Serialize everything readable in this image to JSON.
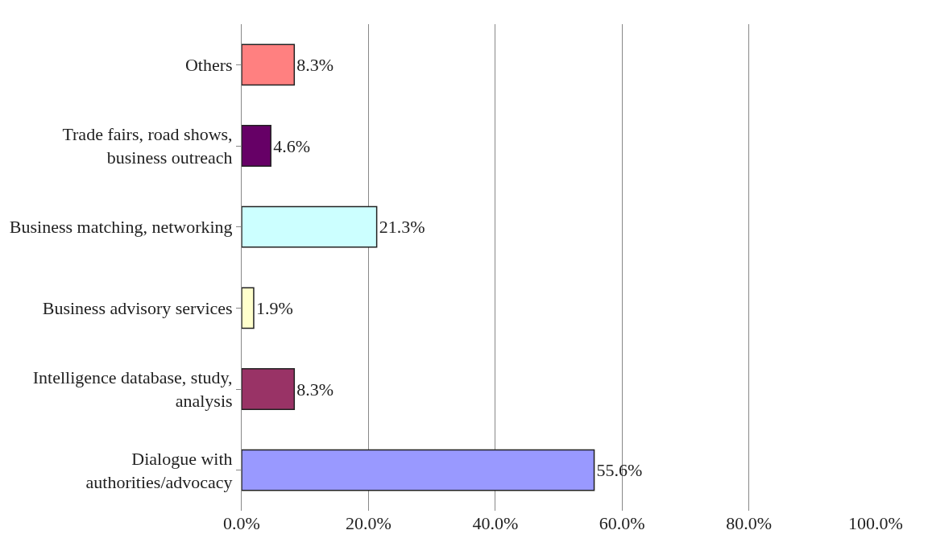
{
  "chart_data": {
    "type": "bar",
    "orientation": "horizontal",
    "categories": [
      "Others",
      "Trade fairs, road shows, business outreach",
      "Business matching, networking",
      "Business advisory services",
      "Intelligence database, study, analysis",
      "Dialogue with authorities/advocacy"
    ],
    "values": [
      8.3,
      4.6,
      21.3,
      1.9,
      8.3,
      55.6
    ],
    "value_labels": [
      "8.3%",
      "4.6%",
      "21.3%",
      "1.9%",
      "8.3%",
      "55.6%"
    ],
    "colors": [
      "#ff8080",
      "#660066",
      "#ccffff",
      "#ffffcc",
      "#993366",
      "#9999ff"
    ],
    "xlim": [
      0,
      100
    ],
    "xticks": [
      {
        "value": 0,
        "label": "0.0%"
      },
      {
        "value": 20,
        "label": "20.0%"
      },
      {
        "value": 40,
        "label": "40.0%"
      },
      {
        "value": 60,
        "label": "60.0%"
      },
      {
        "value": 80,
        "label": "80.0%"
      },
      {
        "value": 100,
        "label": "100.0%"
      }
    ],
    "grid": "x",
    "legend": false
  }
}
